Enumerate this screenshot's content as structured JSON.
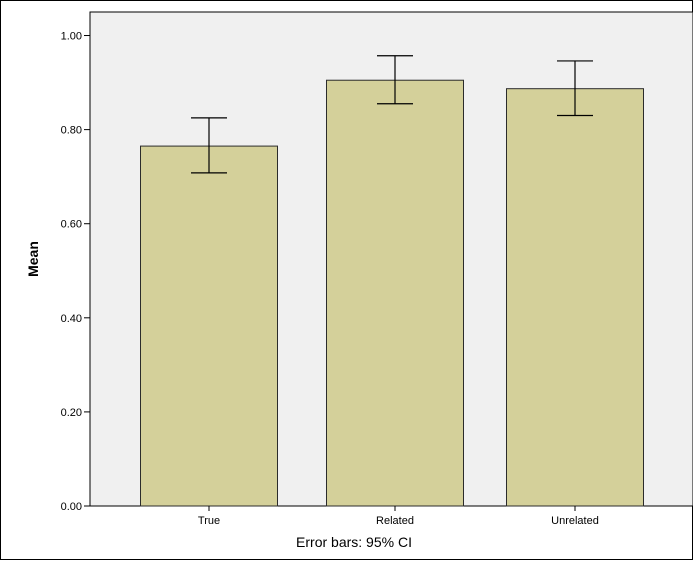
{
  "chart_data": {
    "type": "bar",
    "title": "",
    "xlabel": "",
    "ylabel": "Mean",
    "footnote": "Error bars: 95% CI",
    "categories": [
      "True",
      "Related",
      "Unrelated"
    ],
    "values": [
      0.765,
      0.905,
      0.887
    ],
    "error_bars": {
      "type": "95% CI",
      "lower": [
        0.708,
        0.855,
        0.83
      ],
      "upper": [
        0.825,
        0.957,
        0.946
      ]
    },
    "ylim": [
      0,
      1.05
    ],
    "yticks": [
      0.0,
      0.2,
      0.4,
      0.6,
      0.8,
      1.0
    ],
    "ytick_labels": [
      "0.00",
      "0.20",
      "0.40",
      "0.60",
      "0.80",
      "1.00"
    ],
    "grid": false,
    "legend": "none",
    "colors": {
      "bar_fill": "#d4d09a",
      "bar_stroke": "#2b2b2b",
      "plot_background": "#f0f0f0",
      "frame": "#000000"
    }
  }
}
